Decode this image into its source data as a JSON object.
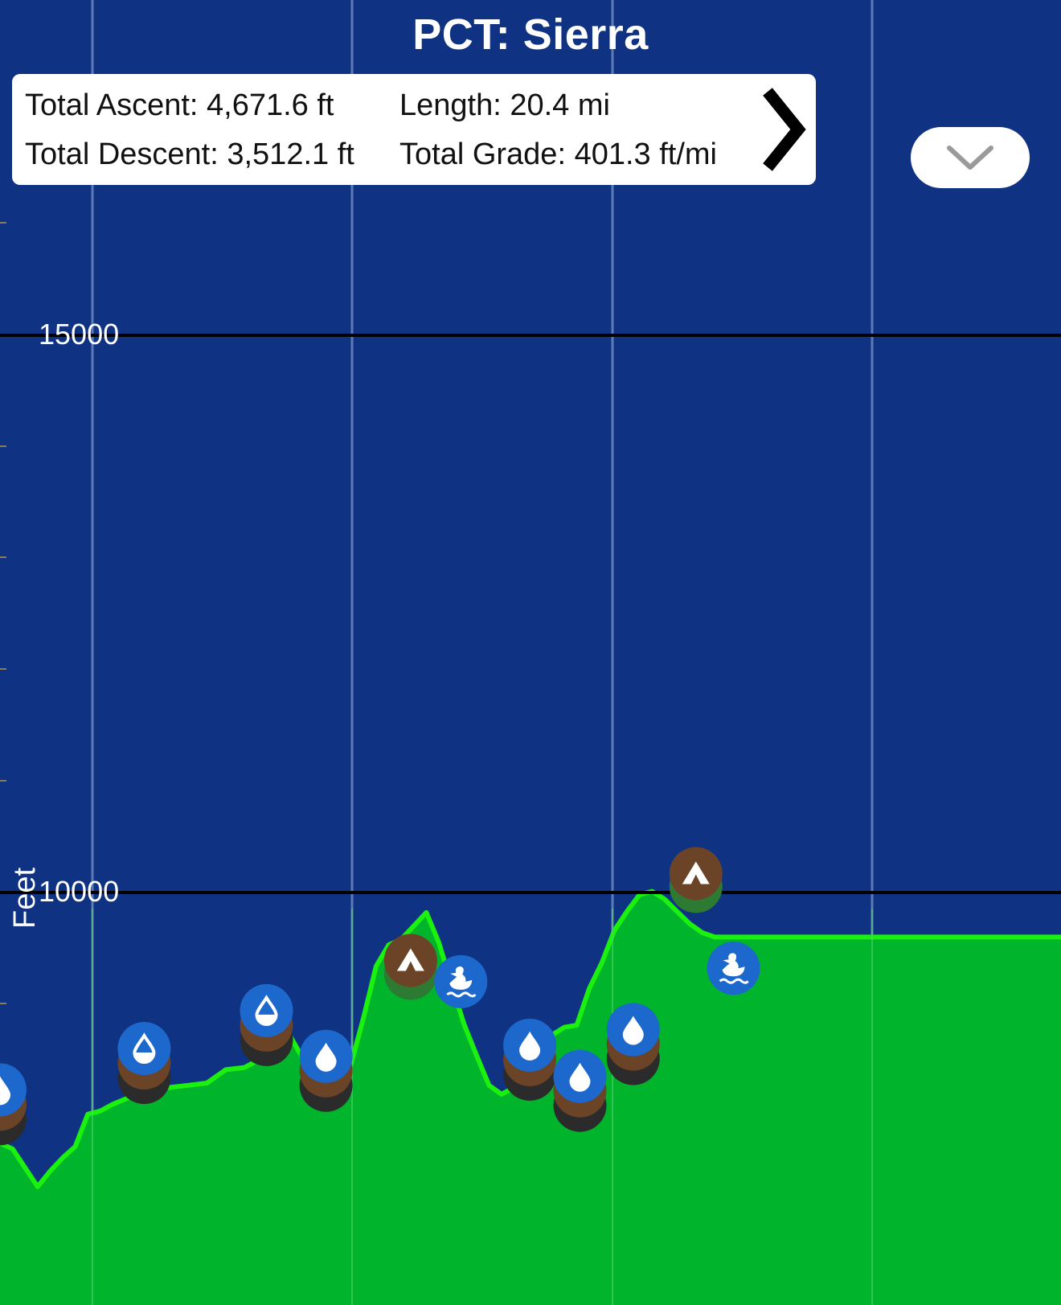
{
  "header": {
    "title": "PCT: Sierra"
  },
  "stats": {
    "ascent_label": "Total Ascent:",
    "ascent_value": "4,671.6 ft",
    "descent_label": "Total Descent:",
    "descent_value": "3,512.1 ft",
    "length_label": "Length:",
    "length_value": "20.4 mi",
    "grade_label": "Total Grade:",
    "grade_value": "401.3 ft/mi",
    "next_icon": "chevron-right-icon"
  },
  "controls": {
    "collapse_icon": "chevron-down-icon"
  },
  "colors": {
    "background": "#0f3282",
    "fill": "#00b52b",
    "line": "#1bf10e",
    "gridline": "#6b86c2",
    "axis_line": "#000000",
    "water": "#1c68cc",
    "camp": "#6b4428",
    "shadow": "#2b2b2b"
  },
  "chart_data": {
    "type": "area",
    "title": "PCT: Sierra",
    "xlabel": "",
    "ylabel": "Feet",
    "y_ticks": [
      10000,
      15000
    ],
    "y_tick_labels": [
      "10000",
      "15000"
    ],
    "grid": true,
    "series": [
      {
        "x": [
          0.0,
          0.2,
          0.4,
          0.6,
          0.8,
          1.0,
          1.2,
          1.4,
          1.6,
          1.8,
          2.1,
          2.4,
          2.7,
          3.0,
          3.3,
          3.6,
          3.9,
          4.2,
          4.4,
          4.6,
          4.8,
          5.0,
          5.2,
          5.4,
          5.6,
          5.8,
          6.0,
          6.2,
          6.4,
          6.6,
          6.8,
          7.0,
          7.2,
          7.4,
          7.6,
          7.8,
          8.0,
          8.2,
          8.4,
          8.6,
          8.8,
          9.0,
          9.2,
          9.4,
          9.6,
          9.8,
          10.0,
          10.2,
          10.4,
          10.6,
          10.8,
          11.0,
          11.2,
          11.4,
          11.6,
          11.8
        ],
        "y": [
          7750,
          7700,
          7530,
          7360,
          7500,
          7620,
          7720,
          8010,
          8040,
          8100,
          8170,
          8300,
          8250,
          8270,
          8290,
          8410,
          8430,
          8520,
          8740,
          8740,
          8540,
          8170,
          8230,
          8370,
          8460,
          8880,
          9340,
          9530,
          9580,
          9700,
          9820,
          9550,
          9180,
          8820,
          8540,
          8270,
          8190,
          8250,
          8270,
          8590,
          8720,
          8790,
          8810,
          9140,
          9370,
          9660,
          9830,
          9980,
          10010,
          9940,
          9830,
          9720,
          9640,
          9600,
          9600,
          9600
        ]
      }
    ],
    "markers": [
      {
        "x": 0.0,
        "y": 8230,
        "kind": "water-full"
      },
      {
        "x": 2.3,
        "y": 8600,
        "kind": "water-half"
      },
      {
        "x": 4.25,
        "y": 8940,
        "kind": "water-half"
      },
      {
        "x": 5.2,
        "y": 8530,
        "kind": "water-full"
      },
      {
        "x": 6.55,
        "y": 9390,
        "kind": "camp"
      },
      {
        "x": 7.35,
        "y": 9200,
        "kind": "swim"
      },
      {
        "x": 8.45,
        "y": 8630,
        "kind": "water-full"
      },
      {
        "x": 9.25,
        "y": 8350,
        "kind": "water-full"
      },
      {
        "x": 10.1,
        "y": 8770,
        "kind": "water-full"
      },
      {
        "x": 11.1,
        "y": 10170,
        "kind": "camp"
      },
      {
        "x": 11.7,
        "y": 9320,
        "kind": "swim"
      }
    ]
  }
}
